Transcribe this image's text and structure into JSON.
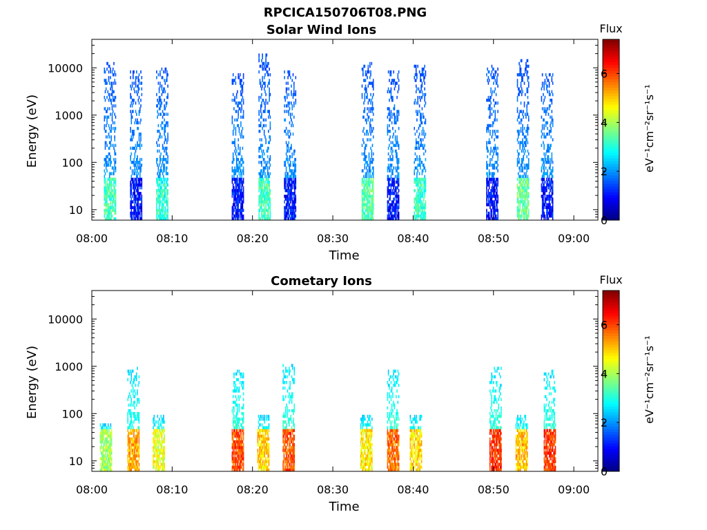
{
  "figure": {
    "main_title": "RPCICA150706T08.PNG"
  },
  "colorbar": {
    "title": "Flux",
    "min": 0,
    "max": 7.4,
    "ticks": [
      "0",
      "2",
      "4",
      "6"
    ],
    "unit_label": "eV⁻¹cm⁻²sr⁻¹s⁻¹",
    "colormap": "jet"
  },
  "chart_data": [
    {
      "type": "heatmap",
      "title": "Solar Wind Ions",
      "xlabel": "Time",
      "ylabel": "Energy (eV)",
      "y_scale": "log",
      "ylim": [
        6,
        40000
      ],
      "xlim": [
        "08:00",
        "09:03"
      ],
      "x_tick_labels": [
        "08:00",
        "08:10",
        "08:20",
        "08:30",
        "08:40",
        "08:50",
        "09:00"
      ],
      "y_tick_labels": [
        "10",
        "100",
        "1000",
        "10000"
      ],
      "bursts": [
        {
          "time": "08:02:15",
          "flux_low_energy": 3.8,
          "flux_high_energy": 1.5,
          "max_energy": 14000
        },
        {
          "time": "08:05:30",
          "flux_low_energy": 1.6,
          "flux_high_energy": 1.5,
          "max_energy": 9000
        },
        {
          "time": "08:08:45",
          "flux_low_energy": 3.6,
          "flux_high_energy": 1.5,
          "max_energy": 10000
        },
        {
          "time": "08:18:10",
          "flux_low_energy": 1.6,
          "flux_high_energy": 1.5,
          "max_energy": 8000
        },
        {
          "time": "08:21:30",
          "flux_low_energy": 3.8,
          "flux_high_energy": 1.5,
          "max_energy": 20000
        },
        {
          "time": "08:24:40",
          "flux_low_energy": 1.6,
          "flux_high_energy": 1.5,
          "max_energy": 9000
        },
        {
          "time": "08:34:20",
          "flux_low_energy": 4.0,
          "flux_high_energy": 1.5,
          "max_energy": 14000
        },
        {
          "time": "08:37:30",
          "flux_low_energy": 1.6,
          "flux_high_energy": 1.5,
          "max_energy": 9000
        },
        {
          "time": "08:40:50",
          "flux_low_energy": 3.7,
          "flux_high_energy": 1.5,
          "max_energy": 12000
        },
        {
          "time": "08:49:50",
          "flux_low_energy": 1.6,
          "flux_high_energy": 1.5,
          "max_energy": 12000
        },
        {
          "time": "08:53:40",
          "flux_low_energy": 4.1,
          "flux_high_energy": 1.5,
          "max_energy": 15000
        },
        {
          "time": "08:56:40",
          "flux_low_energy": 1.6,
          "flux_high_energy": 1.5,
          "max_energy": 8000
        }
      ]
    },
    {
      "type": "heatmap",
      "title": "Cometary Ions",
      "xlabel": "Time",
      "ylabel": "Energy (eV)",
      "y_scale": "log",
      "ylim": [
        6,
        40000
      ],
      "xlim": [
        "08:00",
        "09:03"
      ],
      "x_tick_labels": [
        "08:00",
        "08:10",
        "08:20",
        "08:30",
        "08:40",
        "08:50",
        "09:00"
      ],
      "y_tick_labels": [
        "10",
        "100",
        "1000",
        "10000"
      ],
      "bursts": [
        {
          "time": "08:01:45",
          "flux_low_energy": 4.5,
          "flux_high_energy": 2.4,
          "max_energy": 60
        },
        {
          "time": "08:05:10",
          "flux_low_energy": 5.8,
          "flux_high_energy": 2.5,
          "max_energy": 950
        },
        {
          "time": "08:08:20",
          "flux_low_energy": 5.0,
          "flux_high_energy": 2.4,
          "max_energy": 100
        },
        {
          "time": "08:18:10",
          "flux_low_energy": 6.5,
          "flux_high_energy": 2.6,
          "max_energy": 800
        },
        {
          "time": "08:21:20",
          "flux_low_energy": 5.5,
          "flux_high_energy": 2.4,
          "max_energy": 90
        },
        {
          "time": "08:24:30",
          "flux_low_energy": 6.4,
          "flux_high_energy": 2.6,
          "max_energy": 1100
        },
        {
          "time": "08:34:10",
          "flux_low_energy": 5.3,
          "flux_high_energy": 2.4,
          "max_energy": 100
        },
        {
          "time": "08:37:30",
          "flux_low_energy": 6.2,
          "flux_high_energy": 2.6,
          "max_energy": 800
        },
        {
          "time": "08:40:20",
          "flux_low_energy": 5.4,
          "flux_high_energy": 2.4,
          "max_energy": 100
        },
        {
          "time": "08:50:15",
          "flux_low_energy": 6.7,
          "flux_high_energy": 2.6,
          "max_energy": 950
        },
        {
          "time": "08:53:30",
          "flux_low_energy": 5.6,
          "flux_high_energy": 2.4,
          "max_energy": 100
        },
        {
          "time": "08:57:00",
          "flux_low_energy": 6.6,
          "flux_high_energy": 2.6,
          "max_energy": 800
        }
      ]
    }
  ]
}
